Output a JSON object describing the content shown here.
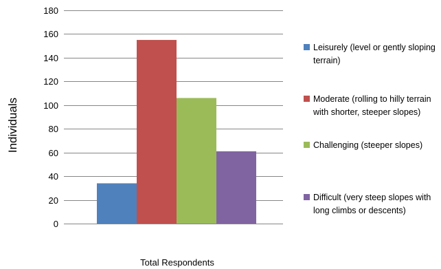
{
  "chart_data": {
    "type": "bar",
    "categories": [
      "Total Respondents"
    ],
    "series": [
      {
        "name": "Leisurely (level or gently sloping terrain)",
        "values": [
          34
        ],
        "color": "#4F81BD"
      },
      {
        "name": "Moderate (rolling to hilly terrain with shorter, steeper slopes)",
        "values": [
          155
        ],
        "color": "#C0504D"
      },
      {
        "name": "Challenging (steeper slopes)",
        "values": [
          106
        ],
        "color": "#9BBB59"
      },
      {
        "name": "Difficult (very steep slopes with long climbs or descents)",
        "values": [
          61
        ],
        "color": "#8064A2"
      }
    ],
    "title": "",
    "xlabel": "",
    "ylabel": "Individuals",
    "ylim": [
      0,
      180
    ],
    "yticks": [
      0,
      20,
      40,
      60,
      80,
      100,
      120,
      140,
      160,
      180
    ],
    "grid": true,
    "legend_position": "right"
  }
}
